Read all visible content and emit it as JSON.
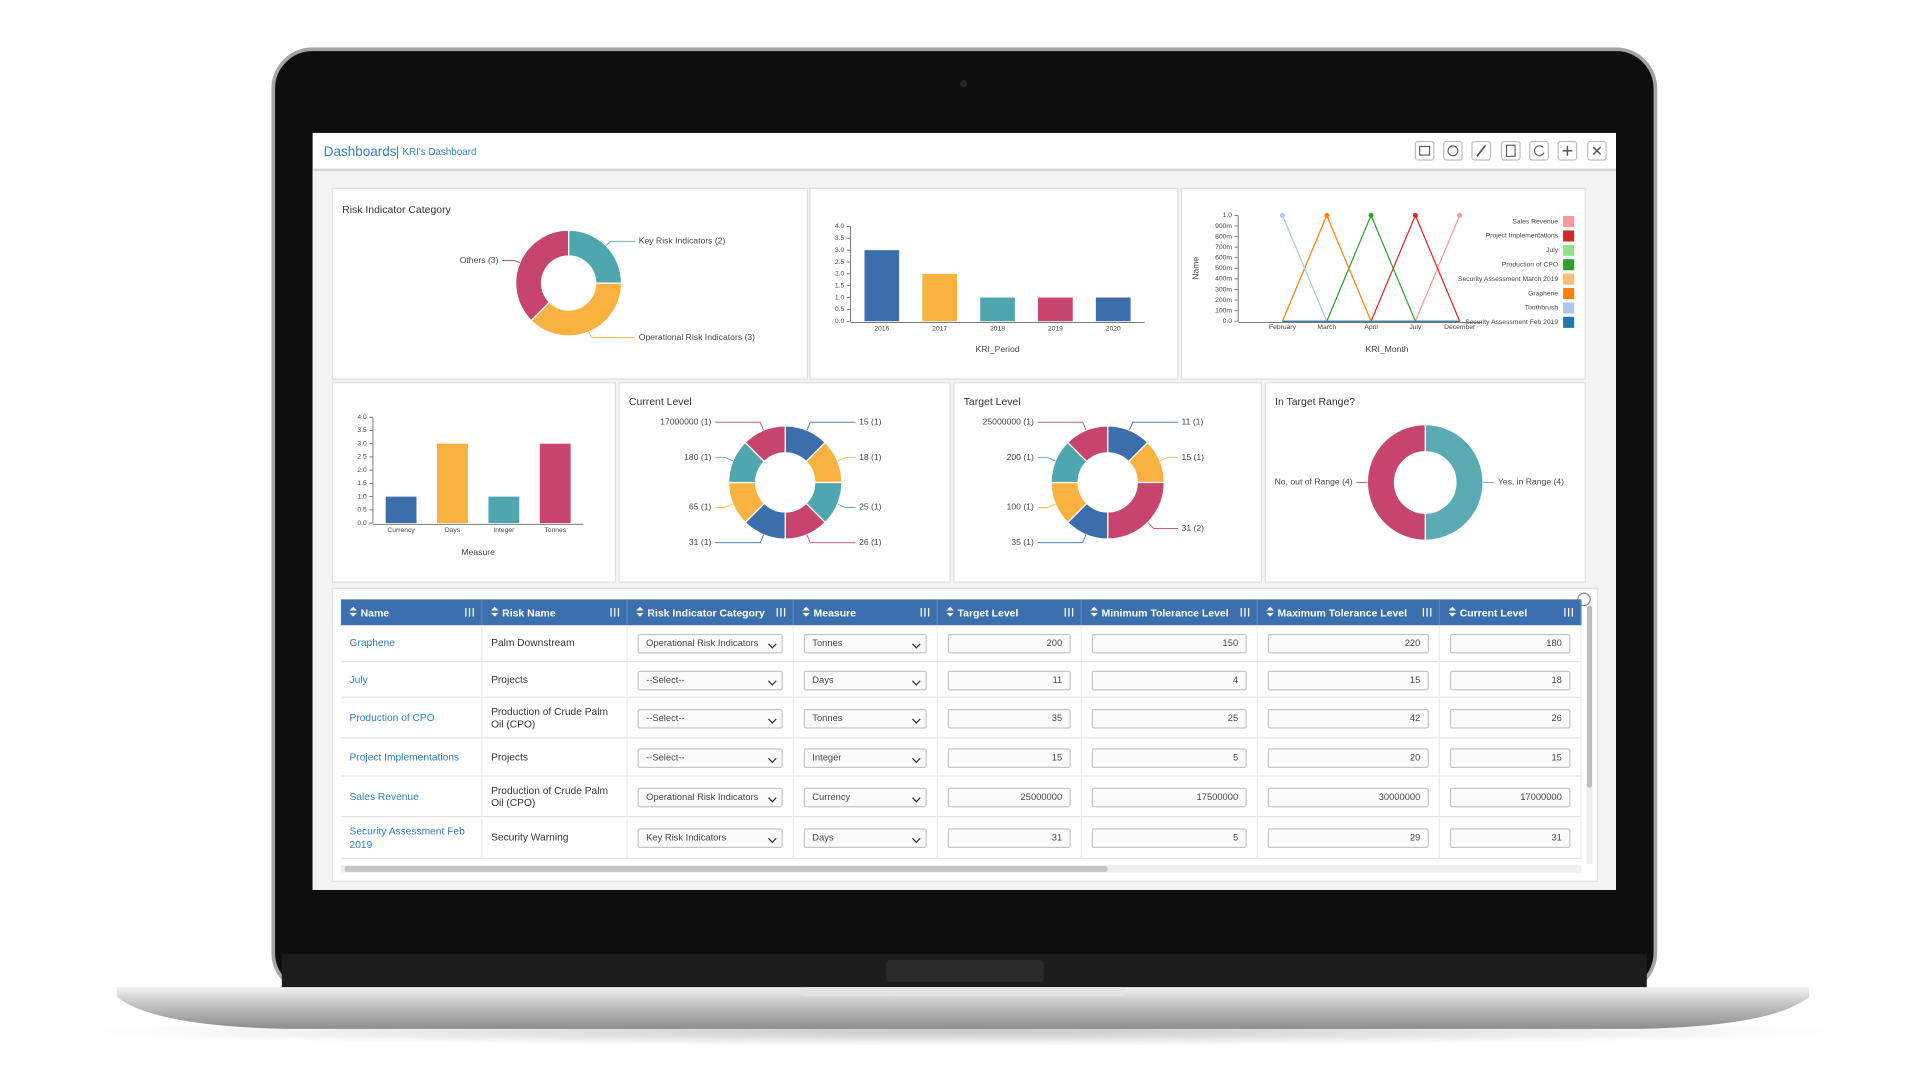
{
  "header": {
    "title": "Dashboards",
    "subtitle": "KRI's Dashboard"
  },
  "charts": [
    {
      "type": "donut",
      "title": "Risk Indicator Category",
      "categories": [
        "Key Risk Indicators (2)",
        "Operational Risk Indicators (3)",
        "Others (3)"
      ],
      "values": [
        2,
        3,
        3
      ],
      "colors": [
        "#4ea6ae",
        "#f9b13f",
        "#c7446e"
      ]
    },
    {
      "type": "bar",
      "x_label": "KRI_Period",
      "categories": [
        "2016",
        "2017",
        "2018",
        "2019",
        "2020"
      ],
      "values": [
        3,
        2,
        1,
        1,
        1
      ],
      "colors": [
        "#3b6eab",
        "#f9b13f",
        "#4ea6ae",
        "#c7446e",
        "#3b6eab"
      ],
      "ylim": [
        0,
        4
      ],
      "yticks": [
        {
          "value": 0,
          "label": "0.0"
        },
        {
          "value": 0.5,
          "label": "0.5"
        },
        {
          "value": 1,
          "label": "1.0"
        },
        {
          "value": 1.5,
          "label": "1.5"
        },
        {
          "value": 2,
          "label": "2.0"
        },
        {
          "value": 2.5,
          "label": "2.5"
        },
        {
          "value": 3,
          "label": "3.0"
        },
        {
          "value": 3.5,
          "label": "3.5"
        },
        {
          "value": 4,
          "label": "4.0"
        }
      ]
    },
    {
      "type": "line",
      "x_label": "KRI_Month",
      "y_label": "Name",
      "categories": [
        "February",
        "March",
        "April",
        "July",
        "December"
      ],
      "ylim": [
        0,
        1
      ],
      "yticks": [
        {
          "value": 0,
          "label": "0.0"
        },
        {
          "value": 0.1,
          "label": "100m"
        },
        {
          "value": 0.2,
          "label": "200m"
        },
        {
          "value": 0.3,
          "label": "300m"
        },
        {
          "value": 0.4,
          "label": "400m"
        },
        {
          "value": 0.5,
          "label": "500m"
        },
        {
          "value": 0.6,
          "label": "600m"
        },
        {
          "value": 0.7,
          "label": "700m"
        },
        {
          "value": 0.8,
          "label": "800m"
        },
        {
          "value": 0.9,
          "label": "900m"
        },
        {
          "value": 1,
          "label": "1.0"
        }
      ],
      "legend": "right",
      "series": [
        {
          "name": "Sales Revenue",
          "color": "#f29b9b",
          "values": [
            null,
            null,
            null,
            0,
            1
          ]
        },
        {
          "name": "Project Implementations",
          "color": "#d62728",
          "values": [
            null,
            null,
            0,
            1,
            0
          ]
        },
        {
          "name": "July",
          "color": "#98df8a",
          "values": [
            0,
            0,
            0,
            0,
            0
          ]
        },
        {
          "name": "Production of CPO",
          "color": "#2ca02c",
          "values": [
            null,
            0,
            1,
            0,
            null
          ]
        },
        {
          "name": "Security Assessment March 2019",
          "color": "#ffbb78",
          "values": [
            0,
            0,
            0,
            0,
            0
          ]
        },
        {
          "name": "Graphene",
          "color": "#ff7f0e",
          "values": [
            0,
            1,
            0,
            null,
            null
          ]
        },
        {
          "name": "Toothbrush",
          "color": "#aec7e8",
          "values": [
            1,
            0,
            null,
            null,
            null
          ]
        },
        {
          "name": "Security Assessment Feb 2019",
          "color": "#1f77b4",
          "values": [
            0,
            0,
            0,
            0,
            0
          ]
        }
      ]
    },
    {
      "type": "bar",
      "x_label": "Measure",
      "categories": [
        "Currency",
        "Days",
        "Integer",
        "Tonnes"
      ],
      "values": [
        1,
        3,
        1,
        3
      ],
      "colors": [
        "#3b6eab",
        "#f9b13f",
        "#4ea6ae",
        "#c7446e"
      ],
      "ylim": [
        0,
        4
      ],
      "yticks": [
        {
          "value": 0,
          "label": "0.0"
        },
        {
          "value": 0.5,
          "label": "0.5"
        },
        {
          "value": 1,
          "label": "1.0"
        },
        {
          "value": 1.5,
          "label": "1.5"
        },
        {
          "value": 2,
          "label": "2.0"
        },
        {
          "value": 2.5,
          "label": "2.5"
        },
        {
          "value": 3,
          "label": "3.0"
        },
        {
          "value": 3.5,
          "label": "3.5"
        },
        {
          "value": 4,
          "label": "4.0"
        }
      ]
    },
    {
      "type": "donut",
      "title": "Current Level",
      "categories": [
        "15 (1)",
        "18 (1)",
        "25 (1)",
        "26 (1)",
        "31 (1)",
        "65 (1)",
        "180 (1)",
        "17000000 (1)"
      ],
      "values": [
        1,
        1,
        1,
        1,
        1,
        1,
        1,
        1
      ],
      "colors": [
        "#3b6eab",
        "#f9b13f",
        "#4ea6ae",
        "#c7446e",
        "#3b6eab",
        "#f9b13f",
        "#4ea6ae",
        "#c7446e"
      ]
    },
    {
      "type": "donut",
      "title": "Target Level",
      "categories": [
        "11 (1)",
        "15 (1)",
        "31 (2)",
        "35 (1)",
        "100 (1)",
        "200 (1)",
        "25000000 (1)"
      ],
      "values": [
        1,
        1,
        2,
        1,
        1,
        1,
        1
      ],
      "colors": [
        "#3b6eab",
        "#f9b13f",
        "#c7446e",
        "#3b6eab",
        "#f9b13f",
        "#4ea6ae",
        "#c7446e"
      ]
    },
    {
      "type": "donut",
      "title": "In Target Range?",
      "categories": [
        "Yes, in Range (4)",
        "No, out of Range (4)"
      ],
      "values": [
        4,
        4
      ],
      "colors": [
        "#5aaab3",
        "#c7446e"
      ]
    }
  ],
  "table": {
    "columns": [
      "Name",
      "Risk Name",
      "Risk Indicator Category",
      "Measure",
      "Target Level",
      "Minimum Tolerance Level",
      "Maximum Tolerance Level",
      "Current Level"
    ],
    "rows": [
      [
        "Graphene",
        "Palm Downstream",
        "Operational Risk Indicators",
        "Tonnes",
        "200",
        "150",
        "220",
        "180"
      ],
      [
        "July",
        "Projects",
        "--Select--",
        "Days",
        "11",
        "4",
        "15",
        "18"
      ],
      [
        "Production of CPO",
        "Production of Crude Palm Oil (CPO)",
        "--Select--",
        "Tonnes",
        "35",
        "25",
        "42",
        "26"
      ],
      [
        "Project Implementations",
        "Projects",
        "--Select--",
        "Integer",
        "15",
        "5",
        "20",
        "15"
      ],
      [
        "Sales Revenue",
        "Production of Crude Palm Oil (CPO)",
        "Operational Risk Indicators",
        "Currency",
        "25000000",
        "17500000",
        "30000000",
        "17000000"
      ],
      [
        "Security Assessment Feb 2019",
        "Security Warning",
        "Key Risk Indicators",
        "Days",
        "31",
        "5",
        "29",
        "31"
      ]
    ]
  }
}
